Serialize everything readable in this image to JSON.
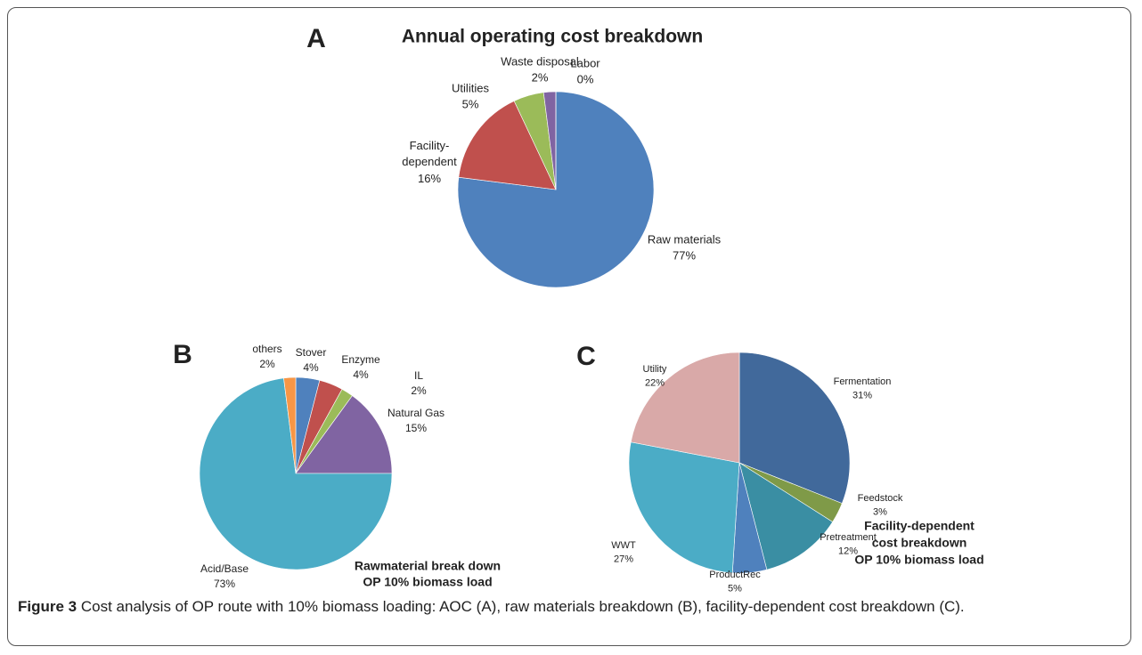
{
  "chart_data": [
    {
      "type": "pie",
      "panel": "A",
      "title": "Annual operating cost breakdown",
      "categories": [
        "Raw materials",
        "Facility-dependent",
        "Utilities",
        "Waste disposal",
        "Labor"
      ],
      "values": [
        77,
        16,
        5,
        2,
        0
      ],
      "value_labels": [
        "77%",
        "16%",
        "5%",
        "2%",
        "0%"
      ],
      "colors": [
        "#4f81bd",
        "#c0504d",
        "#9bbb59",
        "#8064a2",
        "#4bacc6"
      ]
    },
    {
      "type": "pie",
      "panel": "B",
      "subtitle": [
        "Rawmaterial break down",
        "OP 10% biomass load"
      ],
      "categories": [
        "Stover",
        "Enzyme",
        "IL",
        "Natural Gas",
        "Acid/Base",
        "others"
      ],
      "values": [
        4,
        4,
        2,
        15,
        73,
        2
      ],
      "value_labels": [
        "4%",
        "4%",
        "2%",
        "15%",
        "73%",
        "2%"
      ],
      "colors": [
        "#4f81bd",
        "#c0504d",
        "#9bbb59",
        "#8064a2",
        "#4bacc6",
        "#f79646"
      ]
    },
    {
      "type": "pie",
      "panel": "C",
      "subtitle": [
        "Facility-dependent",
        "cost breakdown",
        "OP 10% biomass load"
      ],
      "categories": [
        "Fermentation",
        "Feedstock",
        "Pretreatment",
        "ProductRec",
        "WWT",
        "Utility"
      ],
      "values": [
        31,
        3,
        12,
        5,
        27,
        22
      ],
      "value_labels": [
        "31%",
        "3%",
        "12%",
        "5%",
        "27%",
        "22%"
      ],
      "colors": [
        "#41699b",
        "#7f9a48",
        "#3a8ea3",
        "#4f81bd",
        "#4bacc6",
        "#d9a9a8"
      ]
    }
  ],
  "figure": {
    "caption": {
      "label": "Figure 3",
      "text": "Cost analysis of OP route with 10% biomass loading: AOC (A), raw materials breakdown (B), facility-dependent cost breakdown (C)."
    }
  }
}
